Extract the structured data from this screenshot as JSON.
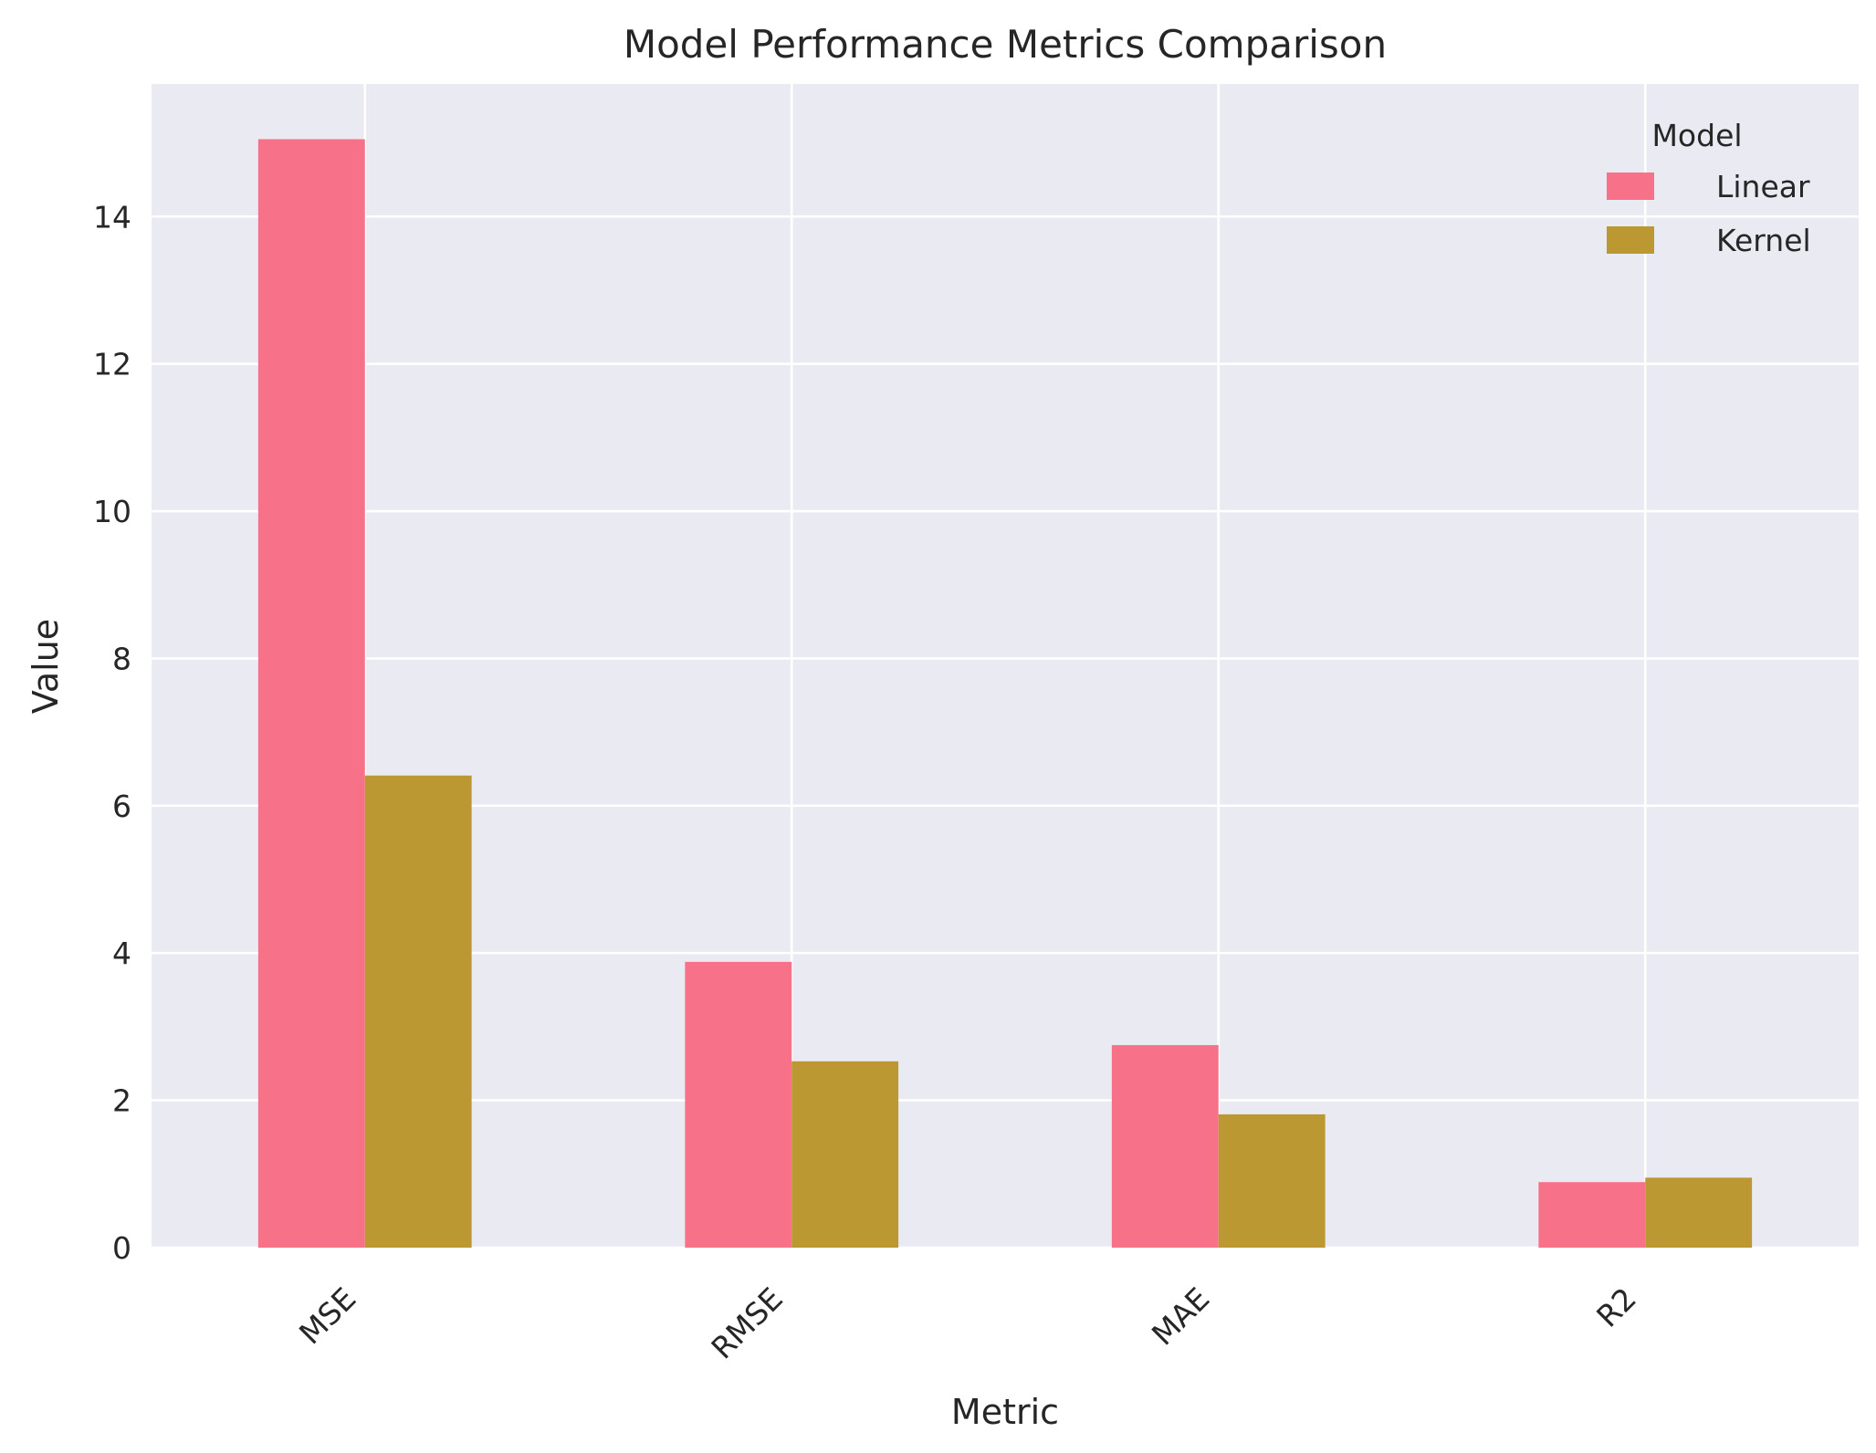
{
  "chart_data": {
    "type": "bar",
    "title": "Model Performance Metrics Comparison",
    "xlabel": "Metric",
    "ylabel": "Value",
    "categories": [
      "MSE",
      "RMSE",
      "MAE",
      "R2"
    ],
    "series": [
      {
        "name": "Linear",
        "values": [
          15.05,
          3.88,
          2.75,
          0.89
        ],
        "color": "#f77189"
      },
      {
        "name": "Kernel",
        "values": [
          6.41,
          2.53,
          1.81,
          0.95
        ],
        "color": "#bb9832"
      }
    ],
    "ylim": [
      0,
      15.8
    ],
    "yticks": [
      "0",
      "2",
      "4",
      "6",
      "8",
      "10",
      "12",
      "14"
    ],
    "legend": {
      "title": "Model",
      "placement": "top-right"
    },
    "grid": true,
    "background": "#eaeaf2"
  }
}
